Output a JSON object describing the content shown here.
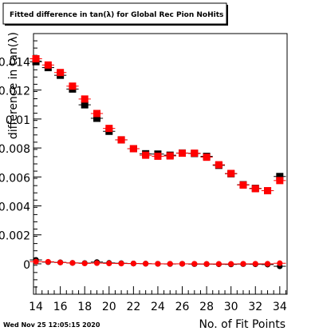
{
  "title": "Fitted difference in tan(λ) for Global Rec Pion NoHits",
  "timestamp": "Wed Nov 25 12:05:15 2020",
  "chart_data": {
    "type": "scatter",
    "xlabel": "No. of Fit Points",
    "ylabel": "difference in tan(λ)",
    "xlim": [
      13.8,
      34.6
    ],
    "ylim": [
      -0.0021,
      0.0159
    ],
    "x_ticks": [
      14,
      16,
      18,
      20,
      22,
      24,
      26,
      28,
      30,
      32,
      34
    ],
    "x_tick_labels": [
      "14",
      "16",
      "18",
      "20",
      "22",
      "24",
      "26",
      "28",
      "30",
      "32",
      "34"
    ],
    "y_ticks": [
      0,
      0.002,
      0.004,
      0.006,
      0.008,
      0.01,
      0.012,
      0.014
    ],
    "y_tick_labels": [
      "0",
      "0.002",
      "0.004",
      "0.006",
      "0.008",
      "0.01",
      "0.012",
      "0.014"
    ],
    "grid": false,
    "legend": false,
    "series": [
      {
        "color": "#000000",
        "marker": "square",
        "x": [
          14,
          15,
          16,
          17,
          18,
          19,
          20,
          21,
          22,
          23,
          24,
          25,
          26,
          27,
          28,
          29,
          30,
          31,
          32,
          33,
          34
        ],
        "y": [
          0.01396,
          0.01355,
          0.01302,
          0.01207,
          0.01098,
          0.01005,
          0.00915,
          0.00856,
          0.00795,
          0.0076,
          0.00758,
          0.0075,
          0.00765,
          0.00762,
          0.00742,
          0.0068,
          0.00622,
          0.00546,
          0.00521,
          0.00505,
          0.00603
        ]
      },
      {
        "color": "#ff0000",
        "marker": "square",
        "x": [
          14,
          15,
          16,
          17,
          18,
          19,
          20,
          21,
          22,
          23,
          24,
          25,
          26,
          27,
          28,
          29,
          30,
          31,
          32,
          33,
          34
        ],
        "y": [
          0.01416,
          0.01373,
          0.01321,
          0.01227,
          0.01138,
          0.01038,
          0.00935,
          0.00856,
          0.00795,
          0.0075,
          0.00743,
          0.00745,
          0.00764,
          0.00764,
          0.00736,
          0.00684,
          0.00624,
          0.00544,
          0.00519,
          0.00505,
          0.00575
        ]
      },
      {
        "color": "#000000",
        "marker": "circle",
        "x": [
          14,
          15,
          16,
          17,
          18,
          19,
          20,
          21,
          22,
          23,
          24,
          25,
          26,
          27,
          28,
          29,
          30,
          31,
          32,
          33,
          34
        ],
        "y": [
          0.00027,
          0.00012,
          0.0001,
          6e-05,
          5e-05,
          0.00012,
          6e-05,
          4e-05,
          2e-05,
          1e-05,
          0.0,
          -1e-05,
          0.0,
          -2e-05,
          -2e-05,
          -3e-05,
          -4e-05,
          -2e-05,
          -3e-05,
          -5e-05,
          -0.00017
        ]
      },
      {
        "color": "#ff0000",
        "marker": "circle",
        "x": [
          14,
          15,
          16,
          17,
          18,
          19,
          20,
          21,
          22,
          23,
          24,
          25,
          26,
          27,
          28,
          29,
          30,
          31,
          32,
          33,
          34
        ],
        "y": [
          0.00015,
          0.00014,
          9e-05,
          6e-05,
          3e-05,
          5e-05,
          3e-05,
          2e-05,
          2e-05,
          1e-05,
          0.0,
          0.0,
          0.0,
          0.0,
          -1e-05,
          -1e-05,
          -1e-05,
          0.0,
          0.0,
          0.0,
          4e-05
        ]
      }
    ]
  }
}
